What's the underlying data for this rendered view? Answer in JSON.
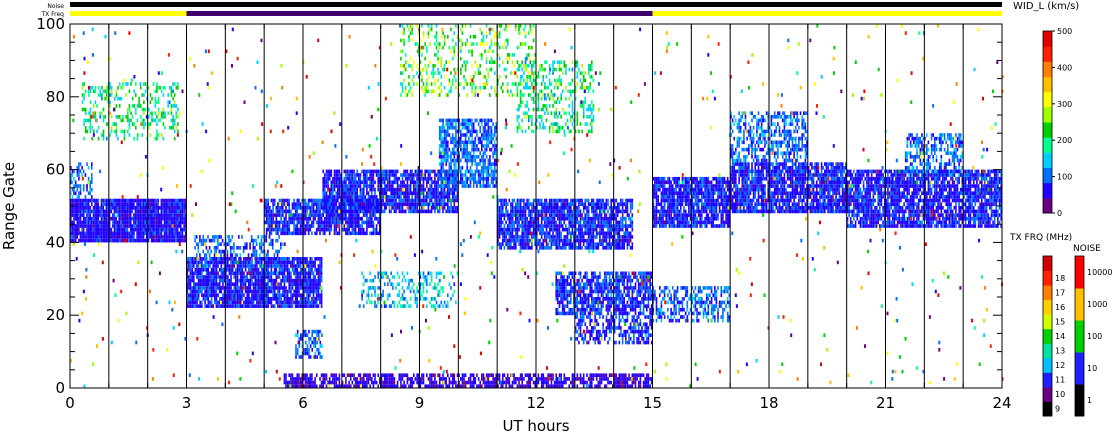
{
  "header": {
    "noise_label": "Noise",
    "txfreq_label": "TX Freq",
    "noise_bar": [
      {
        "from": 0,
        "to": 24,
        "color": "#000000"
      }
    ],
    "txfreq_bar": [
      {
        "from": 0,
        "to": 3,
        "color": "#ffff00"
      },
      {
        "from": 3,
        "to": 15,
        "color": "#3d006e"
      },
      {
        "from": 15,
        "to": 24,
        "color": "#ffff00"
      }
    ]
  },
  "colorbars": {
    "width": {
      "title": "WID_L (km/s)",
      "ticks": [
        "0",
        "100",
        "200",
        "300",
        "400",
        "500"
      ],
      "gradient": [
        "#6a0080",
        "#2000ff",
        "#0070ff",
        "#00d0ff",
        "#00ff90",
        "#00d000",
        "#a0ff00",
        "#ffff00",
        "#ffc000",
        "#ff8000",
        "#ff2000",
        "#e00000"
      ]
    },
    "txfreq": {
      "title": "TX FRQ (MHz)",
      "ticks": [
        "9",
        "10",
        "11",
        "12",
        "13",
        "14",
        "15",
        "16",
        "17",
        "18"
      ],
      "colors": [
        "#000000",
        "#6a0080",
        "#2020ff",
        "#00c0ff",
        "#00e0a0",
        "#00d000",
        "#d0ff00",
        "#ffd000",
        "#ff8000",
        "#ff2000",
        "#d00000"
      ]
    },
    "noise": {
      "title": "NOISE",
      "ticks": [
        "1",
        "10",
        "100",
        "1000",
        "10000"
      ],
      "colors": [
        "#000000",
        "#2020ff",
        "#00d000",
        "#ffc000",
        "#ff0000"
      ]
    }
  },
  "chart_data": {
    "type": "heatmap",
    "xlabel": "UT hours",
    "ylabel": "Range Gate",
    "xlim": [
      0,
      24
    ],
    "ylim": [
      0,
      100
    ],
    "xticks": [
      "0",
      "3",
      "6",
      "9",
      "12",
      "15",
      "18",
      "21",
      "24"
    ],
    "yticks": [
      "0",
      "20",
      "40",
      "60",
      "80",
      "100"
    ],
    "scan_boundaries_hours": [
      1,
      2,
      3,
      4,
      5,
      6,
      7,
      8,
      9,
      10,
      11,
      12,
      13,
      14,
      15,
      16,
      17,
      18,
      19,
      20,
      21,
      22,
      23
    ],
    "grid": false,
    "bands": [
      {
        "x": [
          0,
          3
        ],
        "y": [
          40,
          52
        ],
        "w": [
          40,
          90
        ],
        "density": 0.95
      },
      {
        "x": [
          0,
          0.6
        ],
        "y": [
          52,
          62
        ],
        "w": [
          60,
          140
        ],
        "density": 0.5
      },
      {
        "x": [
          0.3,
          2.8
        ],
        "y": [
          68,
          84
        ],
        "w": [
          120,
          260
        ],
        "density": 0.3
      },
      {
        "x": [
          3,
          6.5
        ],
        "y": [
          22,
          36
        ],
        "w": [
          40,
          100
        ],
        "density": 0.9
      },
      {
        "x": [
          3.2,
          5.5
        ],
        "y": [
          36,
          42
        ],
        "w": [
          60,
          130
        ],
        "density": 0.45
      },
      {
        "x": [
          5,
          8
        ],
        "y": [
          42,
          52
        ],
        "w": [
          40,
          100
        ],
        "density": 0.8
      },
      {
        "x": [
          6.5,
          10
        ],
        "y": [
          48,
          60
        ],
        "w": [
          40,
          100
        ],
        "density": 0.85
      },
      {
        "x": [
          9.5,
          11
        ],
        "y": [
          55,
          74
        ],
        "w": [
          60,
          140
        ],
        "density": 0.7
      },
      {
        "x": [
          11,
          14.5
        ],
        "y": [
          38,
          52
        ],
        "w": [
          40,
          110
        ],
        "density": 0.85
      },
      {
        "x": [
          12.5,
          15
        ],
        "y": [
          20,
          32
        ],
        "w": [
          40,
          110
        ],
        "density": 0.75
      },
      {
        "x": [
          13,
          15
        ],
        "y": [
          12,
          20
        ],
        "w": [
          40,
          110
        ],
        "density": 0.55
      },
      {
        "x": [
          5.5,
          15
        ],
        "y": [
          0,
          4
        ],
        "w": [
          30,
          80
        ],
        "density": 0.7
      },
      {
        "x": [
          15,
          17
        ],
        "y": [
          44,
          58
        ],
        "w": [
          40,
          100
        ],
        "density": 0.85
      },
      {
        "x": [
          15,
          17
        ],
        "y": [
          18,
          28
        ],
        "w": [
          60,
          140
        ],
        "density": 0.5
      },
      {
        "x": [
          17,
          20
        ],
        "y": [
          48,
          62
        ],
        "w": [
          40,
          100
        ],
        "density": 0.85
      },
      {
        "x": [
          17,
          19
        ],
        "y": [
          62,
          76
        ],
        "w": [
          60,
          140
        ],
        "density": 0.5
      },
      {
        "x": [
          20,
          24
        ],
        "y": [
          44,
          60
        ],
        "w": [
          40,
          100
        ],
        "density": 0.85
      },
      {
        "x": [
          21.5,
          23
        ],
        "y": [
          58,
          70
        ],
        "w": [
          60,
          140
        ],
        "density": 0.5
      },
      {
        "x": [
          8.5,
          12
        ],
        "y": [
          80,
          100
        ],
        "w": [
          150,
          320
        ],
        "density": 0.25
      },
      {
        "x": [
          11.5,
          13.5
        ],
        "y": [
          70,
          90
        ],
        "w": [
          120,
          260
        ],
        "density": 0.3
      },
      {
        "x": [
          7.5,
          10
        ],
        "y": [
          22,
          32
        ],
        "w": [
          80,
          200
        ],
        "density": 0.35
      },
      {
        "x": [
          5.8,
          6.5
        ],
        "y": [
          8,
          16
        ],
        "w": [
          60,
          130
        ],
        "density": 0.6
      }
    ]
  }
}
